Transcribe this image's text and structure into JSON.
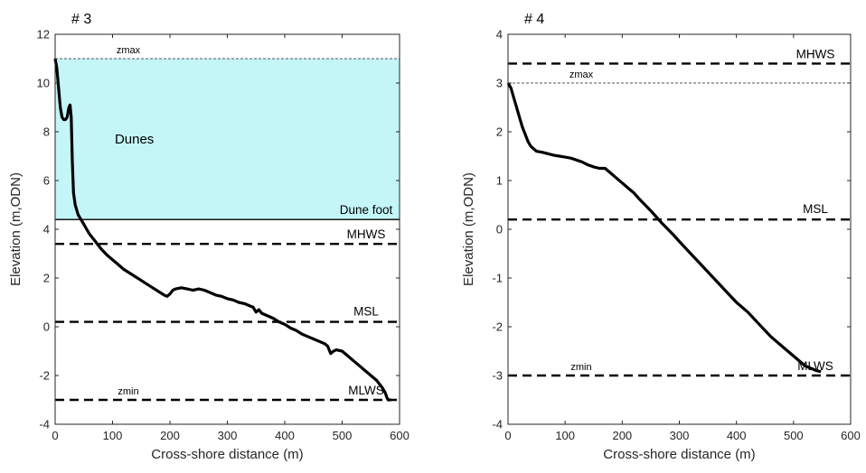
{
  "chart_data": [
    {
      "type": "line",
      "title": "# 3",
      "xlabel": "Cross-shore distance (m)",
      "ylabel": "Elevation (m,ODN)",
      "xlim": [
        0,
        600
      ],
      "ylim": [
        -4,
        12
      ],
      "xticks": [
        "0",
        "100",
        "200",
        "300",
        "400",
        "500",
        "600"
      ],
      "yticks": [
        "-4",
        "-2",
        "0",
        "2",
        "4",
        "6",
        "8",
        "10",
        "12"
      ],
      "region": {
        "label": "Dunes",
        "y_from": 4.4,
        "y_to": 11.0,
        "color": "#c4f5f7"
      },
      "reference_lines": [
        {
          "label": "zmax",
          "y": 11.0,
          "style": "thin"
        },
        {
          "label": "Dune foot",
          "y": 4.4,
          "style": "solid"
        },
        {
          "label": "MHWS",
          "y": 3.4,
          "style": "dashed"
        },
        {
          "label": "MSL",
          "y": 0.2,
          "style": "dashed"
        },
        {
          "label": "MLWS",
          "y": -3.0,
          "style": "dashed"
        },
        {
          "label": "zmin",
          "y": -3.0,
          "style": "none"
        }
      ],
      "series": [
        {
          "x": [
            0,
            3,
            6,
            9,
            12,
            15,
            18,
            21,
            24,
            26,
            28,
            30,
            32,
            35,
            40,
            45,
            50,
            55,
            60,
            70,
            80,
            90,
            100,
            110,
            120,
            130,
            140,
            150,
            160,
            170,
            180,
            190,
            195,
            200,
            205,
            210,
            220,
            230,
            240,
            250,
            260,
            270,
            280,
            290,
            300,
            310,
            320,
            330,
            340,
            345,
            350,
            355,
            360,
            370,
            380,
            390,
            400,
            410,
            420,
            430,
            440,
            450,
            460,
            470,
            475,
            480,
            485,
            490,
            500,
            510,
            520,
            530,
            540,
            550,
            560,
            570,
            575,
            578,
            580,
            585
          ],
          "y": [
            11.0,
            10.6,
            9.8,
            9.0,
            8.6,
            8.5,
            8.5,
            8.6,
            9.0,
            9.1,
            8.6,
            6.8,
            5.5,
            5.0,
            4.6,
            4.4,
            4.2,
            4.0,
            3.8,
            3.5,
            3.2,
            2.95,
            2.75,
            2.55,
            2.35,
            2.2,
            2.05,
            1.9,
            1.75,
            1.6,
            1.45,
            1.3,
            1.25,
            1.35,
            1.5,
            1.55,
            1.6,
            1.55,
            1.5,
            1.55,
            1.5,
            1.4,
            1.3,
            1.25,
            1.15,
            1.1,
            1.0,
            0.95,
            0.85,
            0.8,
            0.6,
            0.7,
            0.55,
            0.45,
            0.35,
            0.2,
            0.1,
            -0.05,
            -0.15,
            -0.3,
            -0.4,
            -0.5,
            -0.6,
            -0.7,
            -0.8,
            -1.1,
            -1.0,
            -0.95,
            -1.0,
            -1.2,
            -1.4,
            -1.6,
            -1.8,
            -2.0,
            -2.2,
            -2.5,
            -2.7,
            -2.9,
            -3.0,
            -3.0
          ]
        }
      ]
    },
    {
      "type": "line",
      "title": "# 4",
      "xlabel": "Cross-shore distance (m)",
      "ylabel": "Elevation (m,ODN)",
      "xlim": [
        0,
        600
      ],
      "ylim": [
        -4,
        4
      ],
      "xticks": [
        "0",
        "100",
        "200",
        "300",
        "400",
        "500",
        "600"
      ],
      "yticks": [
        "-4",
        "-3",
        "-2",
        "-1",
        "0",
        "1",
        "2",
        "3",
        "4"
      ],
      "reference_lines": [
        {
          "label": "MHWS",
          "y": 3.4,
          "style": "dashed"
        },
        {
          "label": "zmax",
          "y": 3.0,
          "style": "thin"
        },
        {
          "label": "MSL",
          "y": 0.2,
          "style": "dashed"
        },
        {
          "label": "MLWS",
          "y": -3.0,
          "style": "dashed"
        },
        {
          "label": "zmin",
          "y": -3.0,
          "style": "none"
        }
      ],
      "series": [
        {
          "x": [
            0,
            5,
            10,
            15,
            20,
            25,
            30,
            35,
            40,
            45,
            50,
            60,
            70,
            80,
            90,
            100,
            110,
            120,
            130,
            140,
            150,
            160,
            170,
            180,
            190,
            200,
            210,
            220,
            230,
            240,
            250,
            260,
            270,
            280,
            290,
            300,
            320,
            340,
            360,
            380,
            400,
            420,
            440,
            460,
            480,
            500,
            520,
            530,
            540,
            548
          ],
          "y": [
            3.0,
            2.9,
            2.7,
            2.5,
            2.3,
            2.1,
            1.95,
            1.8,
            1.7,
            1.65,
            1.6,
            1.58,
            1.55,
            1.52,
            1.5,
            1.48,
            1.46,
            1.42,
            1.38,
            1.32,
            1.28,
            1.25,
            1.25,
            1.15,
            1.05,
            0.95,
            0.85,
            0.75,
            0.62,
            0.5,
            0.38,
            0.25,
            0.12,
            0.0,
            -0.12,
            -0.25,
            -0.5,
            -0.75,
            -1.0,
            -1.25,
            -1.5,
            -1.7,
            -1.95,
            -2.2,
            -2.4,
            -2.6,
            -2.8,
            -2.85,
            -2.9,
            -2.92
          ]
        }
      ]
    }
  ]
}
